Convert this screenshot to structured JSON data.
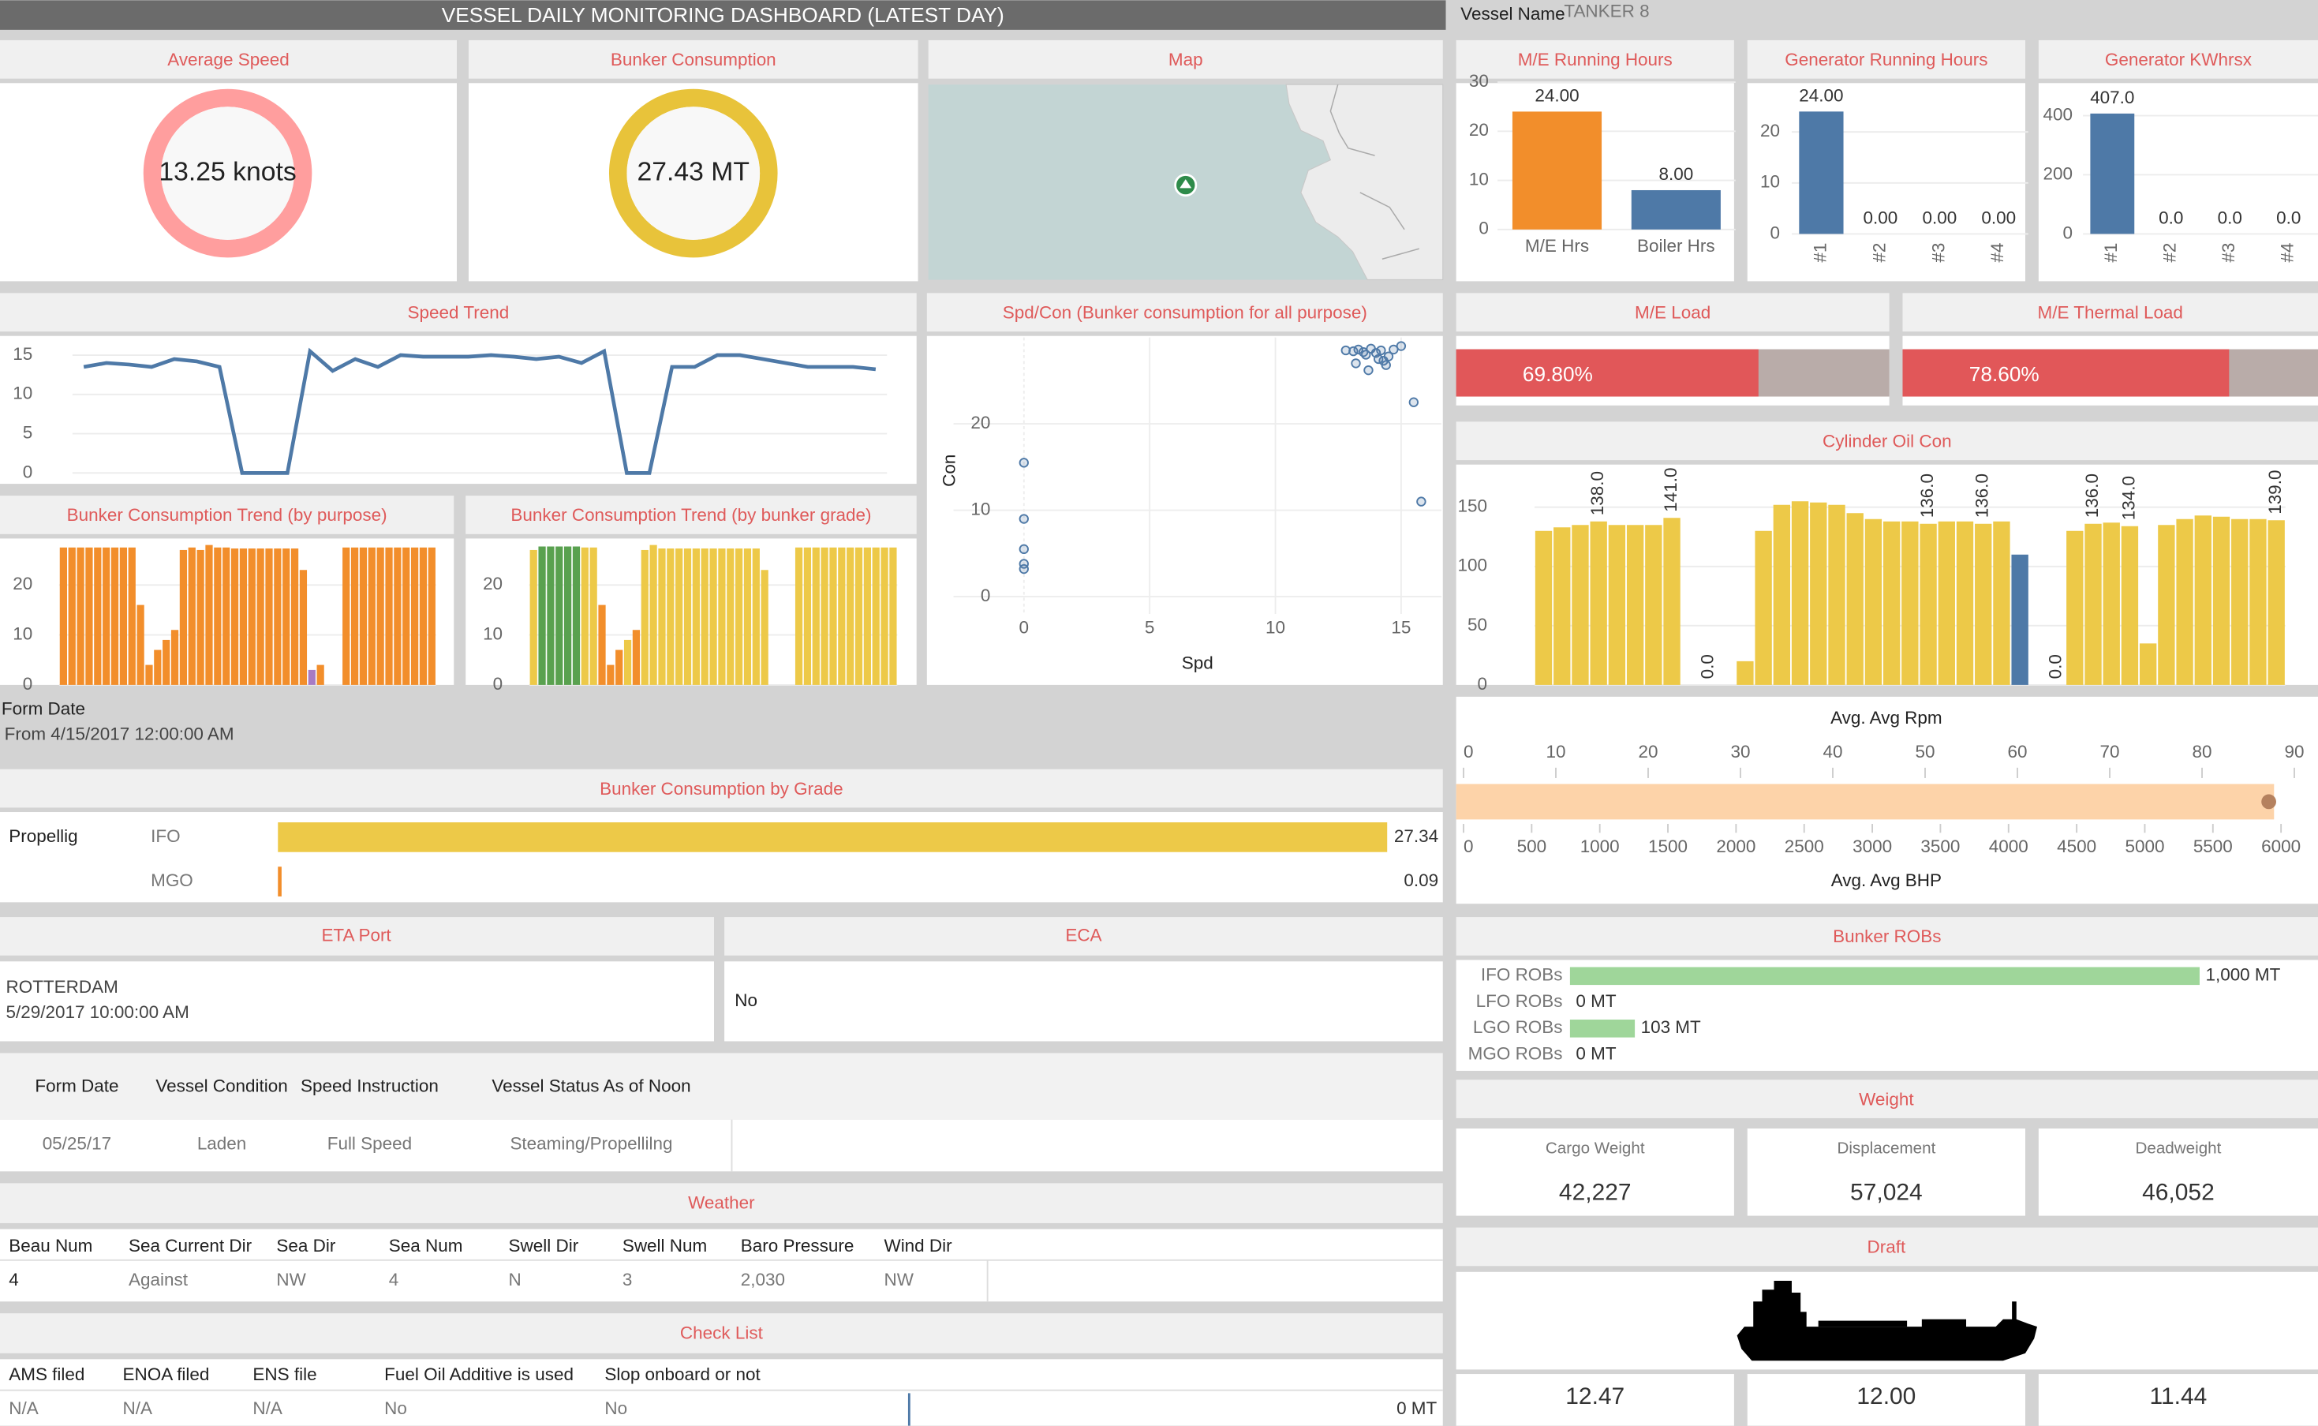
{
  "header": {
    "title": "VESSEL DAILY MONITORING DASHBOARD (LATEST DAY)",
    "vessel_name_label": "Vessel Name",
    "vessel_name": "TANKER 8"
  },
  "chart_data": [
    {
      "type": "donut",
      "title": "Average Speed",
      "values": [
        13.25
      ],
      "value_labels": [
        "13.25 knots"
      ],
      "color": "#ff9e9e"
    },
    {
      "type": "donut",
      "title": "Bunker Consumption",
      "values": [
        27.43
      ],
      "value_labels": [
        "27.43 MT"
      ],
      "color": "#e8c33a"
    },
    {
      "type": "line",
      "title": "Speed Trend",
      "color": "#4e79a7",
      "ylim": [
        -1,
        16.5
      ],
      "yticks": [
        0,
        5,
        10,
        15
      ],
      "values": [
        13.5,
        14,
        13.8,
        13.5,
        14.5,
        14.2,
        13.5,
        0,
        0,
        0,
        15.5,
        13,
        14.5,
        13.5,
        15,
        14.8,
        14.8,
        14.8,
        15,
        14.8,
        14.5,
        14.8,
        14,
        15.5,
        0,
        0,
        13.5,
        13.5,
        15,
        15,
        14.5,
        14,
        13.5,
        13.5,
        13.5,
        13.2
      ]
    },
    {
      "type": "bar",
      "title": "Bunker Consumption Trend (by purpose)",
      "ylim": [
        0,
        29
      ],
      "yticks": [
        0,
        10,
        20
      ],
      "color": "#f28e2b",
      "values": [
        27.5,
        27.5,
        27.5,
        27.5,
        27.5,
        27.5,
        27.5,
        27.5,
        27.5,
        16,
        4,
        7,
        9,
        11,
        27,
        27.5,
        27,
        28,
        27.5,
        27.5,
        27.3,
        27.3,
        27.3,
        27.3,
        27.3,
        27.3,
        27.3,
        27.3,
        23,
        3,
        4,
        null,
        null,
        27.5,
        27.5,
        27.5,
        27.5,
        27.5,
        27.5,
        27.5,
        27.5,
        27.5,
        27.5,
        27.5
      ],
      "colors": [
        "#f28e2b",
        "#f28e2b",
        "#f28e2b",
        "#f28e2b",
        "#f28e2b",
        "#f28e2b",
        "#f28e2b",
        "#f28e2b",
        "#f28e2b",
        "#f28e2b",
        "#f28e2b",
        "#f28e2b",
        "#f28e2b",
        "#f28e2b",
        "#f28e2b",
        "#f28e2b",
        "#f28e2b",
        "#f28e2b",
        "#f28e2b",
        "#f28e2b",
        "#f28e2b",
        "#f28e2b",
        "#f28e2b",
        "#f28e2b",
        "#f28e2b",
        "#f28e2b",
        "#f28e2b",
        "#f28e2b",
        "#f28e2b",
        "#a77bc4",
        "#f28e2b",
        "#f28e2b",
        "#f28e2b",
        "#f28e2b",
        "#f28e2b",
        "#f28e2b",
        "#f28e2b",
        "#f28e2b",
        "#f28e2b",
        "#f28e2b",
        "#f28e2b",
        "#f28e2b",
        "#f28e2b",
        "#f28e2b"
      ]
    },
    {
      "type": "bar",
      "title": "Bunker Consumption Trend (by bunker grade)",
      "ylim": [
        0,
        29
      ],
      "yticks": [
        0,
        10,
        20
      ],
      "color": "#edc948",
      "values": [
        27,
        27.7,
        27.7,
        27.7,
        27.7,
        27.7,
        27.5,
        27.5,
        16,
        4,
        7,
        9,
        11,
        27,
        28,
        27.3,
        27.3,
        27.3,
        27.3,
        27.3,
        27.3,
        27.3,
        27.3,
        27.3,
        27.3,
        27.3,
        27.3,
        23,
        null,
        null,
        null,
        27.5,
        27.5,
        27.5,
        27.5,
        27.5,
        27.5,
        27.5,
        27.5,
        27.5,
        27.5,
        27.5,
        27.5
      ],
      "colors": [
        "#edc948",
        "#59a14f",
        "#59a14f",
        "#59a14f",
        "#59a14f",
        "#59a14f",
        "#edc948",
        "#edc948",
        "#f28e2b",
        "#f28e2b",
        "#f28e2b",
        "#edc948",
        "#f28e2b",
        "#edc948",
        "#edc948",
        "#edc948",
        "#edc948",
        "#edc948",
        "#edc948",
        "#edc948",
        "#edc948",
        "#edc948",
        "#edc948",
        "#edc948",
        "#edc948",
        "#edc948",
        "#edc948",
        "#edc948",
        "#edc948",
        "#edc948",
        "#edc948",
        "#edc948",
        "#edc948",
        "#edc948",
        "#edc948",
        "#edc948",
        "#edc948",
        "#edc948",
        "#edc948",
        "#edc948",
        "#edc948",
        "#edc948",
        "#edc948"
      ]
    },
    {
      "type": "scatter",
      "title": "Spd/Con (Bunker consumption for all purpose)",
      "x_label": "Spd",
      "y_label": "Con",
      "color": "#4e79a7",
      "xlim": [
        -2.8,
        16.6
      ],
      "xticks": [
        0,
        5,
        10,
        15
      ],
      "ylim": [
        -2,
        30
      ],
      "yticks": [
        0,
        10,
        20
      ],
      "x": [
        0,
        0,
        0,
        0,
        0,
        12.8,
        13.1,
        13.3,
        13.5,
        13.6,
        13.8,
        14.0,
        14.2,
        14.3,
        14.5,
        14.7,
        13.2,
        13.7,
        14.1,
        14.4,
        15.0,
        15.5,
        15.8
      ],
      "y": [
        15.5,
        9,
        5.5,
        3.8,
        3.2,
        28.5,
        28.4,
        28.6,
        28.3,
        28.0,
        28.7,
        28.2,
        28.5,
        27.3,
        27.8,
        28.6,
        27.0,
        26.2,
        27.5,
        26.8,
        29.0,
        22.5,
        11.0
      ]
    },
    {
      "type": "bar",
      "title": "M/E Running Hours",
      "ylim": [
        0,
        29.5
      ],
      "yticks": [
        0,
        10,
        20,
        30
      ],
      "categories": [
        "M/E Hrs",
        "Boiler Hrs"
      ],
      "values": [
        24,
        8
      ],
      "value_labels": [
        "24.00",
        "8.00"
      ],
      "colors": [
        "#f28e2b",
        "#4e79a7"
      ]
    },
    {
      "type": "bar",
      "title": "Generator Running Hours",
      "ylim": [
        0,
        29
      ],
      "yticks": [
        0,
        10,
        20
      ],
      "categories": [
        "#1",
        "#2",
        "#3",
        "#4"
      ],
      "values": [
        24,
        0,
        0,
        0
      ],
      "value_labels": [
        "24.00",
        "0.00",
        "0.00",
        "0.00"
      ],
      "color": "#4e79a7"
    },
    {
      "type": "bar",
      "title": "Generator KWhrsx",
      "ylim": [
        0,
        500
      ],
      "yticks": [
        0,
        200,
        400
      ],
      "categories": [
        "#1",
        "#2",
        "#3",
        "#4"
      ],
      "values": [
        407,
        0,
        0,
        0
      ],
      "value_labels": [
        "407.0",
        "0.0",
        "0.0",
        "0.0"
      ],
      "color": "#4e79a7"
    },
    {
      "type": "progress",
      "title": "M/E Load",
      "xlim": [
        0,
        100
      ],
      "values": [
        69.8
      ],
      "value_labels": [
        "69.80%"
      ],
      "color": "#e15759",
      "track_color": "#b9aca9"
    },
    {
      "type": "progress",
      "title": "M/E Thermal Load",
      "xlim": [
        0,
        100
      ],
      "values": [
        78.6
      ],
      "value_labels": [
        "78.60%"
      ],
      "color": "#e15759",
      "track_color": "#b9aca9"
    },
    {
      "type": "bar",
      "title": "Cylinder Oil Con",
      "ylim": [
        0,
        181
      ],
      "yticks": [
        0,
        50,
        100,
        150
      ],
      "color": "#edc948",
      "values": [
        130,
        133,
        135,
        138,
        135,
        135,
        135,
        141,
        null,
        0,
        null,
        20,
        130,
        152,
        155,
        154,
        152,
        145,
        140,
        138,
        138,
        136,
        138,
        138,
        136,
        138,
        110,
        null,
        0,
        130,
        136,
        137,
        134,
        35,
        135,
        140,
        143,
        142,
        140,
        140,
        139
      ],
      "value_labels": [
        null,
        null,
        null,
        "138.0",
        null,
        null,
        null,
        "141.0",
        null,
        "0.0",
        null,
        null,
        null,
        null,
        null,
        null,
        null,
        null,
        null,
        null,
        null,
        "136.0",
        null,
        null,
        "136.0",
        null,
        null,
        null,
        "0.0",
        null,
        "136.0",
        null,
        "134.0",
        null,
        null,
        null,
        null,
        null,
        null,
        null,
        "139.0"
      ],
      "colors": [
        "#edc948",
        "#edc948",
        "#edc948",
        "#edc948",
        "#edc948",
        "#edc948",
        "#edc948",
        "#edc948",
        "#edc948",
        "#edc948",
        "#edc948",
        "#edc948",
        "#edc948",
        "#edc948",
        "#edc948",
        "#edc948",
        "#edc948",
        "#edc948",
        "#edc948",
        "#edc948",
        "#edc948",
        "#edc948",
        "#edc948",
        "#edc948",
        "#edc948",
        "#edc948",
        "#4e79a7",
        "#edc948",
        "#edc948",
        "#edc948",
        "#edc948",
        "#edc948",
        "#edc948",
        "#edc948",
        "#edc948",
        "#edc948",
        "#edc948",
        "#edc948",
        "#edc948",
        "#edc948",
        "#edc948"
      ]
    },
    {
      "type": "bullet",
      "x_label": "Avg. Avg Rpm",
      "xlim": [
        0,
        90
      ],
      "xticks": [
        0,
        10,
        20,
        30,
        40,
        50,
        60,
        70,
        80,
        90
      ],
      "x2_label": "Avg. Avg BHP",
      "x2lim": [
        0,
        6000
      ],
      "x2ticks": [
        0,
        500,
        1000,
        1500,
        2000,
        2500,
        3000,
        3500,
        4000,
        4500,
        5000,
        5500,
        6000
      ],
      "bar_value": 87.8,
      "dot_value": 5910,
      "color": "#fdd3a9",
      "dot_color": "#b5815e"
    },
    {
      "type": "hbar",
      "title": "Bunker Consumption by Grade",
      "group_label": "Propellig",
      "xlim": [
        0,
        27.4
      ],
      "categories": [
        "IFO",
        "MGO"
      ],
      "values": [
        27.34,
        0.09
      ],
      "colors": [
        "#edc948",
        "#f28e2b"
      ]
    },
    {
      "type": "hbar",
      "title": "Bunker ROBs",
      "xlim": [
        0,
        1188
      ],
      "categories": [
        "IFO ROBs",
        "LFO ROBs",
        "LGO ROBs",
        "MGO ROBs"
      ],
      "values": [
        1000,
        0,
        103,
        0
      ],
      "value_labels": [
        "1,000 MT",
        "0 MT",
        "103 MT",
        "0 MT"
      ],
      "color": "#9fd69a"
    }
  ],
  "map": {
    "title": "Map"
  },
  "form_date": {
    "label": "Form Date",
    "value": "From 4/15/2017 12:00:00 AM"
  },
  "eta_port": {
    "title": "ETA Port",
    "port": "ROTTERDAM",
    "date": "5/29/2017 10:00:00 AM"
  },
  "eca": {
    "title": "ECA",
    "value": "No"
  },
  "status_table": {
    "headers": [
      "Form Date",
      "Vessel Condition",
      "Speed Instruction",
      "Vessel Status As of Noon"
    ],
    "rows": [
      [
        "05/25/17",
        "Laden",
        "Full Speed",
        "Steaming/Propellilng"
      ]
    ]
  },
  "weather": {
    "title": "Weather",
    "headers": [
      "Beau Num",
      "Sea Current Dir",
      "Sea Dir",
      "Sea Num",
      "Swell Dir",
      "Swell Num",
      "Baro Pressure",
      "Wind Dir"
    ],
    "rows": [
      [
        "4",
        "Against",
        "NW",
        "4",
        "N",
        "3",
        "2,030",
        "NW"
      ]
    ]
  },
  "check_list": {
    "title": "Check List",
    "headers": [
      "AMS filed",
      "ENOA filed",
      "ENS file",
      "Fuel Oil Additive is used",
      "Slop onboard or not"
    ],
    "rows": [
      [
        "N/A",
        "N/A",
        "N/A",
        "No",
        "No"
      ]
    ],
    "total": "0 MT"
  },
  "weight": {
    "title": "Weight",
    "items": [
      {
        "label": "Cargo Weight",
        "value": "42,227"
      },
      {
        "label": "Displacement",
        "value": "57,024"
      },
      {
        "label": "Deadweight",
        "value": "46,052"
      }
    ]
  },
  "draft": {
    "title": "Draft",
    "values": [
      "12.47",
      "12.00",
      "11.44"
    ]
  }
}
